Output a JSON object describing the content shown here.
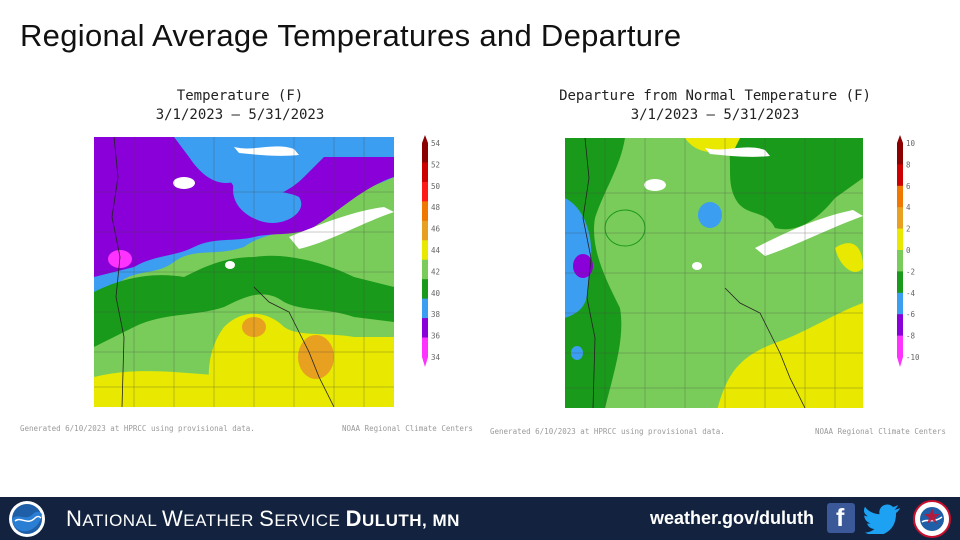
{
  "slide": {
    "title": "Regional Average Temperatures and Departure"
  },
  "maps": [
    {
      "title_line1": "Temperature (F)",
      "title_line2": "3/1/2023 – 5/31/2023",
      "generated": "Generated 6/10/2023 at HPRCC using provisional data.",
      "source": "NOAA Regional Climate Centers",
      "legend": {
        "labels": [
          "54",
          "52",
          "50",
          "48",
          "46",
          "44",
          "42",
          "40",
          "38",
          "36",
          "34"
        ],
        "colors": [
          "#8b0000",
          "#cc0000",
          "#ff1a1a",
          "#f07800",
          "#e8a020",
          "#e8e800",
          "#7acc5a",
          "#1a9a1a",
          "#3b9ef0",
          "#8a00d8",
          "#ff33ff"
        ]
      }
    },
    {
      "title_line1": "Departure from Normal Temperature (F)",
      "title_line2": "3/1/2023 – 5/31/2023",
      "generated": "Generated 6/10/2023 at HPRCC using provisional data.",
      "source": "NOAA Regional Climate Centers",
      "legend": {
        "labels": [
          "10",
          "8",
          "6",
          "4",
          "2",
          "0",
          "-2",
          "-4",
          "-6",
          "-8",
          "-10"
        ],
        "colors": [
          "#8b0000",
          "#cc0000",
          "#f07800",
          "#e8a020",
          "#e8e800",
          "#7acc5a",
          "#1a9a1a",
          "#3b9ef0",
          "#8a00d8",
          "#ff33ff"
        ]
      }
    }
  ],
  "footer": {
    "org_first": "N",
    "org_rest1": "ATIONAL ",
    "org_w": "W",
    "org_rest2": "EATHER ",
    "org_s": "S",
    "org_rest3": "ERVICE ",
    "office_d": "D",
    "office_rest": "ULUTH, MN",
    "url": "weather.gov/duluth",
    "facebook": "f",
    "logo_left": "NOAA",
    "logo_right": "NWS"
  },
  "icons": [
    "noaa-logo-icon",
    "facebook-icon",
    "twitter-icon",
    "nws-logo-icon"
  ]
}
